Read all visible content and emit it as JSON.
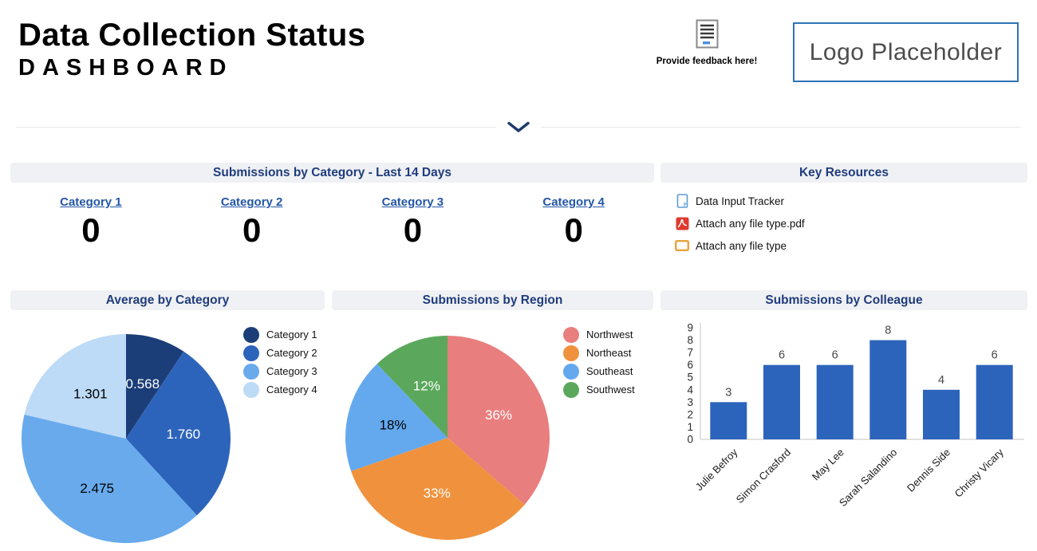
{
  "header": {
    "title": "Data Collection Status",
    "subtitle": "DASHBOARD",
    "feedback_label": "Provide feedback here!",
    "logo_text": "Logo Placeholder"
  },
  "category_panel": {
    "title": "Submissions by Category - Last 14 Days",
    "items": [
      {
        "label": "Category 1",
        "value": "0"
      },
      {
        "label": "Category 2",
        "value": "0"
      },
      {
        "label": "Category 3",
        "value": "0"
      },
      {
        "label": "Category 4",
        "value": "0"
      }
    ]
  },
  "resources_panel": {
    "title": "Key Resources",
    "items": [
      {
        "icon": "document-icon",
        "label": "Data Input Tracker"
      },
      {
        "icon": "pdf-icon",
        "label": "Attach any file type.pdf"
      },
      {
        "icon": "file-icon",
        "label": "Attach any file type"
      }
    ]
  },
  "colors": {
    "accent_navy": "#1F3C7D",
    "link_blue": "#2456A6",
    "panel_header_bg": "#F0F1F4",
    "logo_border": "#2E74B5"
  },
  "chart_data": [
    {
      "type": "pie",
      "title": "Average by Category",
      "labels": [
        "Category 1",
        "Category 2",
        "Category 3",
        "Category 4"
      ],
      "values": [
        0.568,
        1.76,
        2.475,
        1.301
      ],
      "value_labels": [
        "0.568",
        "1.760",
        "2.475",
        "1.301"
      ],
      "colors": [
        "#1C3E78",
        "#2D64BB",
        "#68AAEC",
        "#BDDAF6"
      ],
      "label_colors": [
        "#ffffff",
        "#ffffff",
        "#000000",
        "#000000"
      ],
      "legend_position": "right",
      "start_angle": 0,
      "direction": "clockwise"
    },
    {
      "type": "pie",
      "title": "Submissions by Region",
      "labels": [
        "Northwest",
        "Northeast",
        "Southeast",
        "Southwest"
      ],
      "values": [
        36,
        33,
        18,
        12
      ],
      "value_labels": [
        "36%",
        "33%",
        "18%",
        "12%"
      ],
      "colors": [
        "#E87E7D",
        "#F0923D",
        "#64A9EE",
        "#5BA85C"
      ],
      "label_colors": [
        "#ffffff",
        "#ffffff",
        "#000000",
        "#ffffff"
      ],
      "legend_position": "right",
      "start_angle": 0,
      "direction": "clockwise"
    },
    {
      "type": "bar",
      "title": "Submissions by Colleague",
      "categories": [
        "Julie Befroy",
        "Simon Crasford",
        "May Lee",
        "Sarah Salandino",
        "Dennis Side",
        "Christy Vicary"
      ],
      "values": [
        3,
        6,
        6,
        8,
        4,
        6
      ],
      "ylim": [
        0,
        9
      ],
      "yticks": [
        0,
        1,
        2,
        3,
        4,
        5,
        6,
        7,
        8,
        9
      ],
      "bar_color": "#2D64BB",
      "grid": false,
      "xlabel": "",
      "ylabel": ""
    }
  ]
}
